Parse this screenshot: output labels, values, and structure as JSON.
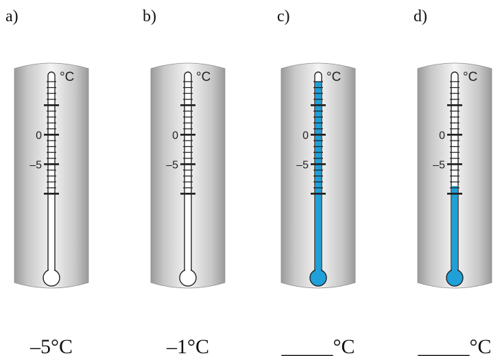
{
  "unit": "°C",
  "scale": {
    "min": -10,
    "max": 9,
    "major_labels": [
      {
        "value": 0,
        "text": "0"
      },
      {
        "value": -5,
        "text": "–5"
      }
    ]
  },
  "colors": {
    "mercury": "#1fa0d8",
    "case_dark": "#9a9a9a",
    "case_light": "#f2f2f2",
    "glass": "#ffffff",
    "ink": "#222222"
  },
  "thermometers": [
    {
      "id": "a",
      "label": "a)",
      "reading": null,
      "answer": "–5°C"
    },
    {
      "id": "b",
      "label": "b)",
      "reading": null,
      "answer": "–1°C"
    },
    {
      "id": "c",
      "label": "c)",
      "reading": 9,
      "answer": "_____°C"
    },
    {
      "id": "d",
      "label": "d)",
      "reading": -8.7,
      "answer": "_____°C"
    }
  ]
}
